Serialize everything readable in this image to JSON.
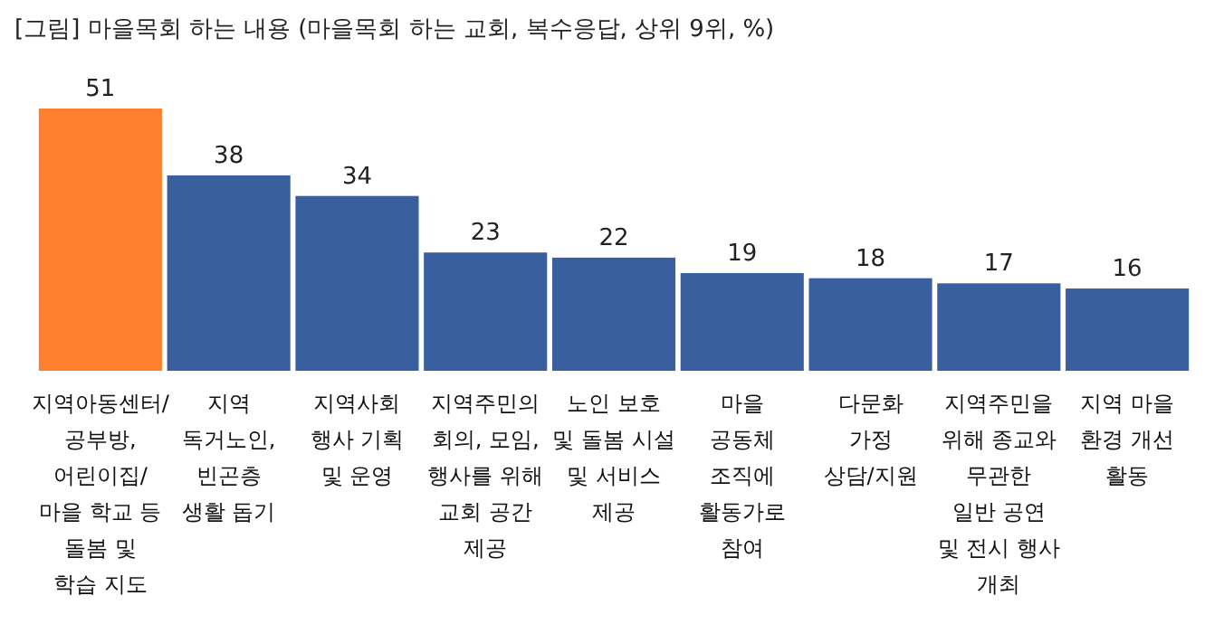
{
  "chart_data": {
    "type": "bar",
    "title": "[그림] 마을목회 하는 내용 (마을목회 하는 교회, 복수응답, 상위 9위, %)",
    "categories": [
      "지역아동센터/\n공부방,\n어린이집/\n마을 학교 등\n돌봄 및\n학습 지도",
      "지역\n독거노인,\n빈곤층\n생활 돕기",
      "지역사회\n행사 기획\n및 운영",
      "지역주민의\n회의, 모임,\n행사를 위해\n교회 공간\n제공",
      "노인 보호\n및 돌봄 시설\n및 서비스\n제공",
      "마을\n공동체\n조직에\n활동가로\n참여",
      "다문화\n가정\n상담/지원",
      "지역주민을\n위해 종교와\n무관한\n일반 공연\n및 전시 행사\n개최",
      "지역 마을\n환경 개선\n활동"
    ],
    "values": [
      51,
      38,
      34,
      23,
      22,
      19,
      18,
      17,
      16
    ],
    "colors": [
      "#fe7f2e",
      "#3a5f9f",
      "#3a5f9f",
      "#3a5f9f",
      "#3a5f9f",
      "#3a5f9f",
      "#3a5f9f",
      "#3a5f9f",
      "#3a5f9f"
    ],
    "data_labels": true
  }
}
